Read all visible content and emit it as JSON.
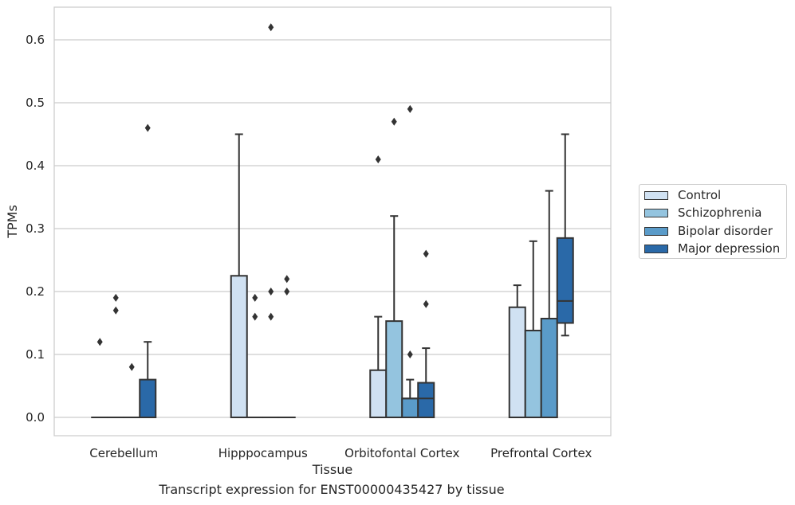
{
  "chart_data": {
    "type": "box",
    "title": "",
    "caption": "Transcript expression for ENST00000435427 by tissue",
    "xlabel": "Tissue",
    "ylabel": "TPMs",
    "ylim": [
      -0.03,
      0.65
    ],
    "yticks": [
      0.0,
      0.1,
      0.2,
      0.3,
      0.4,
      0.5,
      0.6
    ],
    "ytick_labels": [
      "0.0",
      "0.1",
      "0.2",
      "0.3",
      "0.4",
      "0.5",
      "0.6"
    ],
    "grid": true,
    "legend_position": "right",
    "categories": [
      "Cerebellum",
      "Hipppocampus",
      "Orbitofontal Cortex",
      "Prefrontal Cortex"
    ],
    "series": [
      {
        "name": "Control",
        "color": "#d0e1f2",
        "boxes": [
          {
            "q1": 0,
            "median": 0,
            "q3": 0,
            "whisker_low": 0,
            "whisker_high": 0,
            "outliers": [
              0.12
            ]
          },
          {
            "q1": 0,
            "median": 0,
            "q3": 0.225,
            "whisker_low": 0,
            "whisker_high": 0.45,
            "outliers": []
          },
          {
            "q1": 0,
            "median": 0,
            "q3": 0.075,
            "whisker_low": 0,
            "whisker_high": 0.16,
            "outliers": [
              0.41
            ]
          },
          {
            "q1": 0,
            "median": 0,
            "q3": 0.175,
            "whisker_low": 0,
            "whisker_high": 0.21,
            "outliers": []
          }
        ]
      },
      {
        "name": "Schizophrenia",
        "color": "#94c4df",
        "boxes": [
          {
            "q1": 0,
            "median": 0,
            "q3": 0,
            "whisker_low": 0,
            "whisker_high": 0,
            "outliers": [
              0.17,
              0.19
            ]
          },
          {
            "q1": 0,
            "median": 0,
            "q3": 0,
            "whisker_low": 0,
            "whisker_high": 0,
            "outliers": [
              0.16,
              0.19
            ]
          },
          {
            "q1": 0,
            "median": 0,
            "q3": 0.153,
            "whisker_low": 0,
            "whisker_high": 0.32,
            "outliers": [
              0.47
            ]
          },
          {
            "q1": 0,
            "median": 0,
            "q3": 0.138,
            "whisker_low": 0,
            "whisker_high": 0.28,
            "outliers": []
          }
        ]
      },
      {
        "name": "Bipolar disorder",
        "color": "#5a9bc9",
        "boxes": [
          {
            "q1": 0,
            "median": 0,
            "q3": 0,
            "whisker_low": 0,
            "whisker_high": 0,
            "outliers": [
              0.08
            ]
          },
          {
            "q1": 0,
            "median": 0,
            "q3": 0,
            "whisker_low": 0,
            "whisker_high": 0,
            "outliers": [
              0.16,
              0.2,
              0.62
            ]
          },
          {
            "q1": 0,
            "median": 0.03,
            "q3": 0.03,
            "whisker_low": 0,
            "whisker_high": 0.06,
            "outliers": [
              0.1,
              0.49
            ]
          },
          {
            "q1": 0,
            "median": 0,
            "q3": 0.157,
            "whisker_low": 0,
            "whisker_high": 0.36,
            "outliers": []
          }
        ]
      },
      {
        "name": "Major depression",
        "color": "#2a69a8",
        "boxes": [
          {
            "q1": 0,
            "median": 0,
            "q3": 0.06,
            "whisker_low": 0,
            "whisker_high": 0.12,
            "outliers": [
              0.46
            ]
          },
          {
            "q1": 0,
            "median": 0,
            "q3": 0,
            "whisker_low": 0,
            "whisker_high": 0,
            "outliers": [
              0.2,
              0.22
            ]
          },
          {
            "q1": 0,
            "median": 0.03,
            "q3": 0.055,
            "whisker_low": 0,
            "whisker_high": 0.11,
            "outliers": [
              0.18,
              0.26
            ]
          },
          {
            "q1": 0.15,
            "median": 0.185,
            "q3": 0.285,
            "whisker_low": 0.13,
            "whisker_high": 0.45,
            "outliers": []
          }
        ]
      }
    ]
  }
}
